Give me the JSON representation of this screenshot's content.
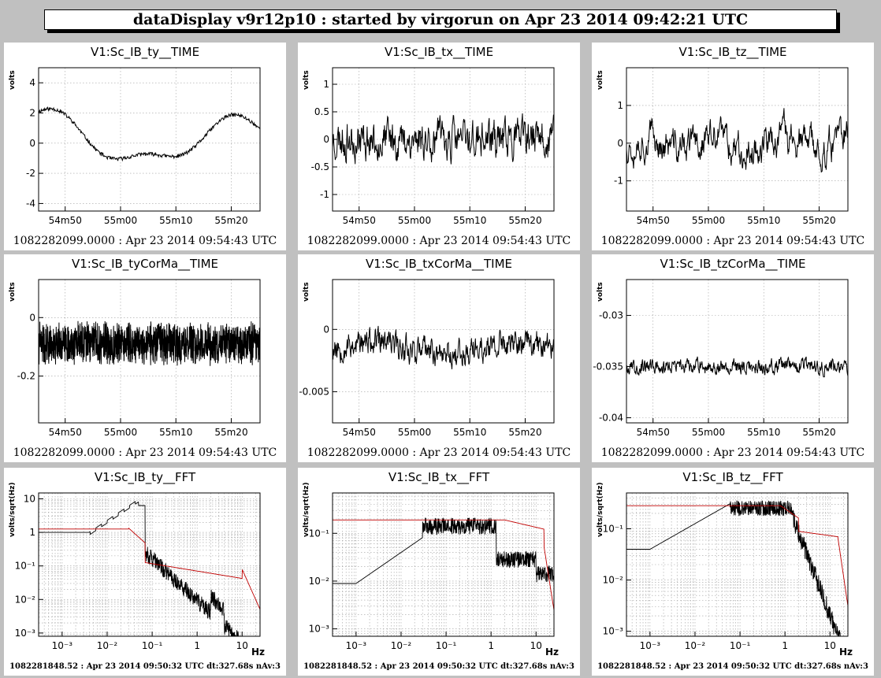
{
  "header": {
    "title": "dataDisplay v9r12p10 : started by virgorun on Apr 23 2014 09:42:21 UTC"
  },
  "time_footer": "1082282099.0000  : Apr 23 2014 09:54:43 UTC",
  "fft_footer": "1082281848.52 : Apr 23 2014 09:50:32 UTC dt:327.68s nAv:3",
  "colors": {
    "trace": "#000000",
    "reference": "#c00000",
    "grid": "#a0a0a0",
    "background": "#ffffff",
    "frame": "#c0c0c0"
  },
  "chart_data": [
    {
      "type": "line",
      "title": "V1:Sc_IB_ty__TIME",
      "ylabel": "volts",
      "ylim": [
        -4.5,
        5
      ],
      "yticks": [
        -4,
        -2,
        0,
        2,
        4
      ],
      "yticklabels": [
        "-4",
        "-2",
        "0",
        "2",
        "4"
      ],
      "xticklabels": [
        "54m50",
        "55m00",
        "55m10",
        "55m20"
      ],
      "shape": "ty",
      "seed": 11
    },
    {
      "type": "line",
      "title": "V1:Sc_IB_tx__TIME",
      "ylabel": "volts",
      "ylim": [
        -1.3,
        1.3
      ],
      "yticks": [
        -1,
        -0.5,
        0,
        0.5,
        1
      ],
      "yticklabels": [
        "-1",
        "-0.5",
        "0",
        "0.5",
        "1"
      ],
      "xticklabels": [
        "54m50",
        "55m00",
        "55m10",
        "55m20"
      ],
      "shape": "tx",
      "seed": 23
    },
    {
      "type": "line",
      "title": "V1:Sc_IB_tz__TIME",
      "ylabel": "volts",
      "ylim": [
        -1.8,
        2
      ],
      "yticks": [
        -1,
        0,
        1
      ],
      "yticklabels": [
        "-1",
        "0",
        "1"
      ],
      "xticklabels": [
        "54m50",
        "55m00",
        "55m10",
        "55m20"
      ],
      "shape": "tz",
      "seed": 37
    },
    {
      "type": "line",
      "title": "V1:Sc_IB_tyCorMa__TIME",
      "ylabel": "volts",
      "ylim": [
        -0.36,
        0.13
      ],
      "yticks": [
        -0.2,
        0
      ],
      "yticklabels": [
        "-0.2",
        "0"
      ],
      "xticklabels": [
        "54m50",
        "55m00",
        "55m10",
        "55m20"
      ],
      "shape": "tyc",
      "seed": 41
    },
    {
      "type": "line",
      "title": "V1:Sc_IB_txCorMa__TIME",
      "ylabel": "volts",
      "ylim": [
        -0.0075,
        0.004
      ],
      "yticks": [
        -0.005,
        0
      ],
      "yticklabels": [
        "-0.005",
        "0"
      ],
      "xticklabels": [
        "54m50",
        "55m00",
        "55m10",
        "55m20"
      ],
      "shape": "txc",
      "seed": 53
    },
    {
      "type": "line",
      "title": "V1:Sc_IB_tzCorMa__TIME",
      "ylabel": "volts",
      "ylim": [
        -0.0405,
        -0.0265
      ],
      "yticks": [
        -0.04,
        -0.035,
        -0.03
      ],
      "yticklabels": [
        "-0.04",
        "-0.035",
        "-0.03"
      ],
      "xticklabels": [
        "54m50",
        "55m00",
        "55m10",
        "55m20"
      ],
      "shape": "tzc",
      "seed": 67
    },
    {
      "type": "line",
      "title": "V1:Sc_IB_ty__FFT",
      "ylabel": "volts/sqrt(Hz)",
      "xlabel": "Hz",
      "xscale": "log",
      "yscale": "log",
      "xlim": [
        0.0003,
        25
      ],
      "ylim": [
        0.0008,
        15
      ],
      "yticks": [
        0.001,
        0.01,
        0.1,
        1,
        10
      ],
      "yticklabels": [
        "10⁻³",
        "10⁻²",
        "10⁻¹",
        "1",
        "10"
      ],
      "xticks": [
        0.001,
        0.01,
        0.1,
        1,
        10
      ],
      "xticklabels": [
        "10⁻³",
        "10⁻²",
        "10⁻¹",
        "1",
        "10"
      ],
      "shape": "fty",
      "seed": 71
    },
    {
      "type": "line",
      "title": "V1:Sc_IB_tx__FFT",
      "ylabel": "volts/sqrt(Hz)",
      "xlabel": "Hz",
      "xscale": "log",
      "yscale": "log",
      "xlim": [
        0.0003,
        25
      ],
      "ylim": [
        0.0007,
        0.7
      ],
      "yticks": [
        0.001,
        0.01,
        0.1
      ],
      "yticklabels": [
        "10⁻³",
        "10⁻²",
        "10⁻¹"
      ],
      "xticks": [
        0.001,
        0.01,
        0.1,
        1,
        10
      ],
      "xticklabels": [
        "10⁻³",
        "10⁻²",
        "10⁻¹",
        "1",
        "10"
      ],
      "shape": "ftx",
      "seed": 83
    },
    {
      "type": "line",
      "title": "V1:Sc_IB_tz__FFT",
      "ylabel": "volts/sqrt(Hz)",
      "xlabel": "Hz",
      "xscale": "log",
      "yscale": "log",
      "xlim": [
        0.0003,
        25
      ],
      "ylim": [
        0.0008,
        0.5
      ],
      "yticks": [
        0.001,
        0.01,
        0.1
      ],
      "yticklabels": [
        "10⁻³",
        "10⁻²",
        "10⁻¹"
      ],
      "xticks": [
        0.001,
        0.01,
        0.1,
        1,
        10
      ],
      "xticklabels": [
        "10⁻³",
        "10⁻²",
        "10⁻¹",
        "1",
        "10"
      ],
      "shape": "ftz",
      "seed": 97
    }
  ]
}
